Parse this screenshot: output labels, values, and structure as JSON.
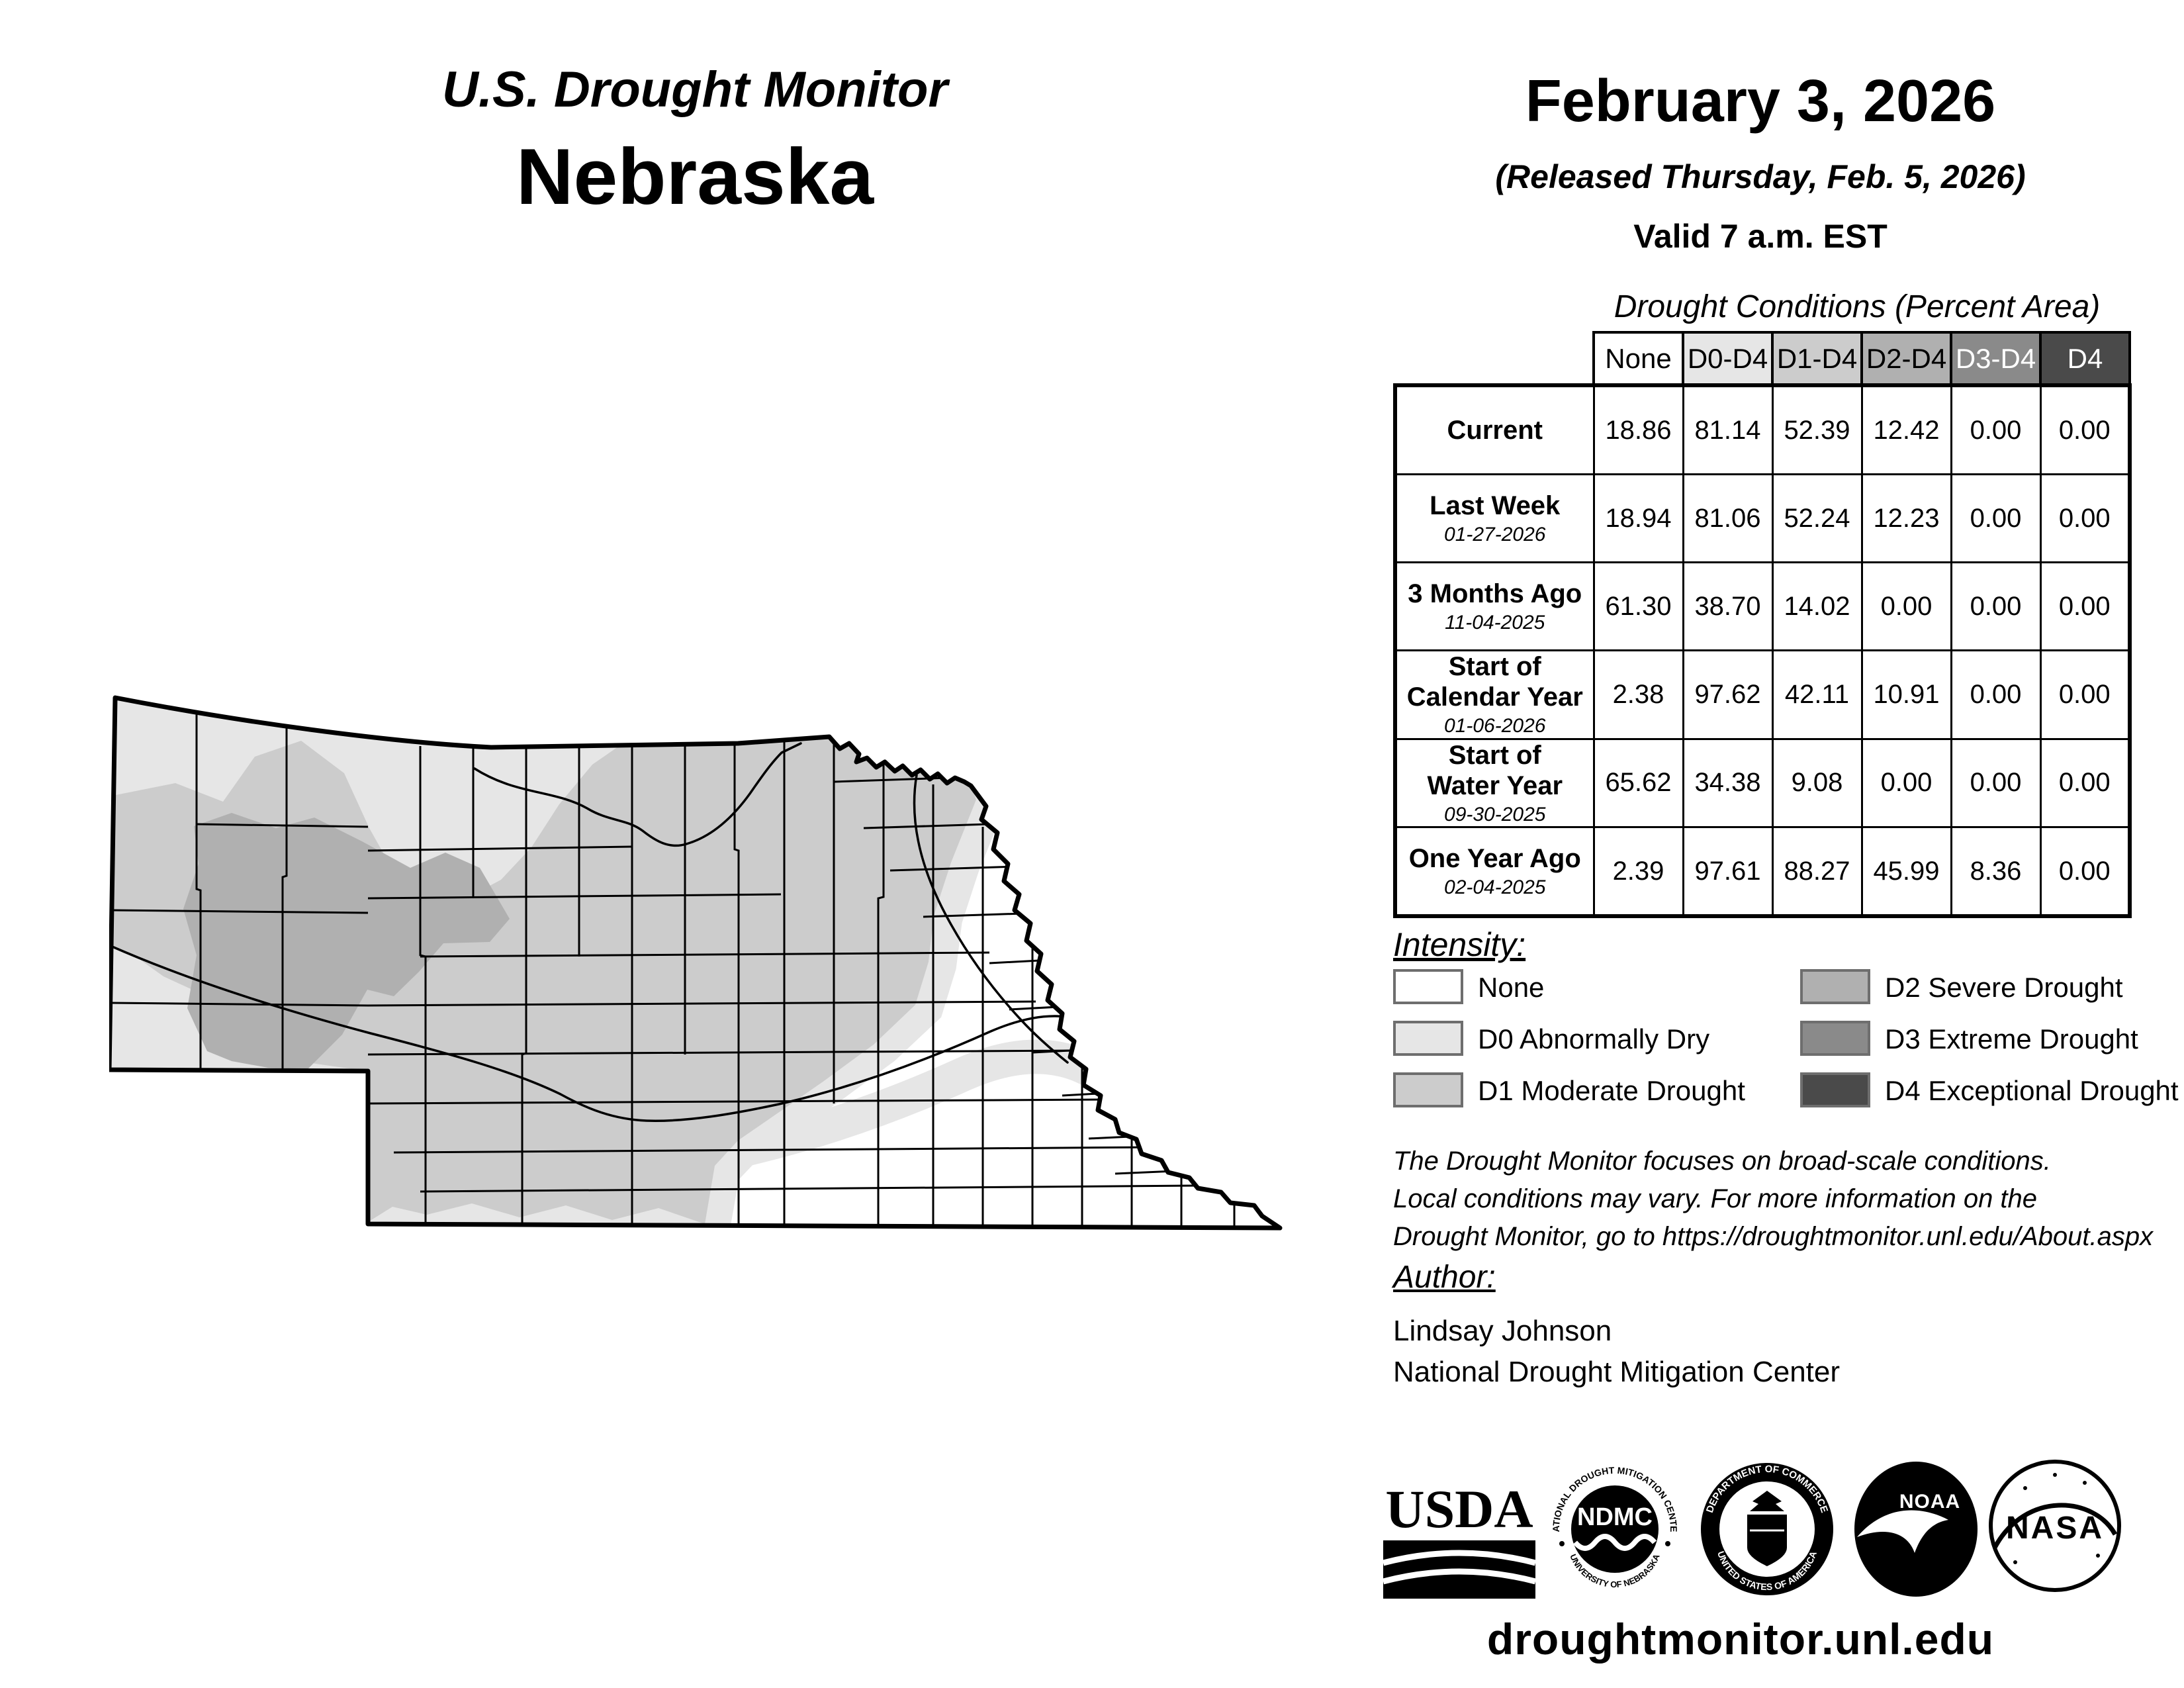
{
  "header": {
    "title_line1": "U.S. Drought Monitor",
    "title_line2": "Nebraska"
  },
  "date_block": {
    "date": "February 3, 2026",
    "released": "(Released Thursday, Feb. 5, 2026)",
    "valid": "Valid 7 a.m. EST"
  },
  "table": {
    "title": "Drought Conditions (Percent Area)",
    "columns": [
      "None",
      "D0-D4",
      "D1-D4",
      "D2-D4",
      "D3-D4",
      "D4"
    ],
    "header_colors": [
      "#ffffff",
      "#e6e6e6",
      "#cccccc",
      "#b0b0b0",
      "#8a8a8a",
      "#4a4a4a"
    ],
    "header_text_colors": [
      "#000000",
      "#000000",
      "#000000",
      "#000000",
      "#ffffff",
      "#ffffff"
    ],
    "rows": [
      {
        "label": "Current",
        "date": "",
        "values": [
          "18.86",
          "81.14",
          "52.39",
          "12.42",
          "0.00",
          "0.00"
        ]
      },
      {
        "label": "Last Week",
        "date": "01-27-2026",
        "values": [
          "18.94",
          "81.06",
          "52.24",
          "12.23",
          "0.00",
          "0.00"
        ]
      },
      {
        "label": "3 Months Ago",
        "date": "11-04-2025",
        "values": [
          "61.30",
          "38.70",
          "14.02",
          "0.00",
          "0.00",
          "0.00"
        ]
      },
      {
        "label": "Start of\nCalendar Year",
        "date": "01-06-2026",
        "values": [
          "2.38",
          "97.62",
          "42.11",
          "10.91",
          "0.00",
          "0.00"
        ]
      },
      {
        "label": "Start of\nWater Year",
        "date": "09-30-2025",
        "values": [
          "65.62",
          "34.38",
          "9.08",
          "0.00",
          "0.00",
          "0.00"
        ]
      },
      {
        "label": "One Year Ago",
        "date": "02-04-2025",
        "values": [
          "2.39",
          "97.61",
          "88.27",
          "45.99",
          "8.36",
          "0.00"
        ]
      }
    ]
  },
  "legend": {
    "heading": "Intensity:",
    "items": [
      {
        "label": "None",
        "color": "#ffffff"
      },
      {
        "label": "D0 Abnormally Dry",
        "color": "#e6e6e6"
      },
      {
        "label": "D1 Moderate Drought",
        "color": "#cccccc"
      },
      {
        "label": "D2 Severe Drought",
        "color": "#b0b0b0"
      },
      {
        "label": "D3 Extreme Drought",
        "color": "#8a8a8a"
      },
      {
        "label": "D4 Exceptional Drought",
        "color": "#4a4a4a"
      }
    ]
  },
  "disclaimer": {
    "line1": "The Drought Monitor focuses on broad-scale conditions.",
    "line2": "Local conditions may vary. For more information on the",
    "line3": "Drought Monitor, go to https://droughtmonitor.unl.edu/About.aspx"
  },
  "author": {
    "heading": "Author:",
    "name": "Lindsay Johnson",
    "org": "National Drought Mitigation Center"
  },
  "logos": {
    "usda": "USDA",
    "ndmc": "NDMC",
    "ndmc_ring_top": "NATIONAL DROUGHT MITIGATION CENTER",
    "ndmc_ring_bottom": "UNIVERSITY OF NEBRASKA",
    "doc_ring_top": "DEPARTMENT OF COMMERCE",
    "doc_ring_bottom": "UNITED STATES OF AMERICA",
    "noaa": "NOAA",
    "nasa": "NASA"
  },
  "footer": {
    "url": "droughtmonitor.unl.edu"
  },
  "map": {
    "state": "Nebraska",
    "fill_none": "#ffffff",
    "fill_d0": "#e6e6e6",
    "fill_d1": "#cccccc",
    "fill_d2": "#b0b0b0",
    "outline_color": "#000000"
  }
}
